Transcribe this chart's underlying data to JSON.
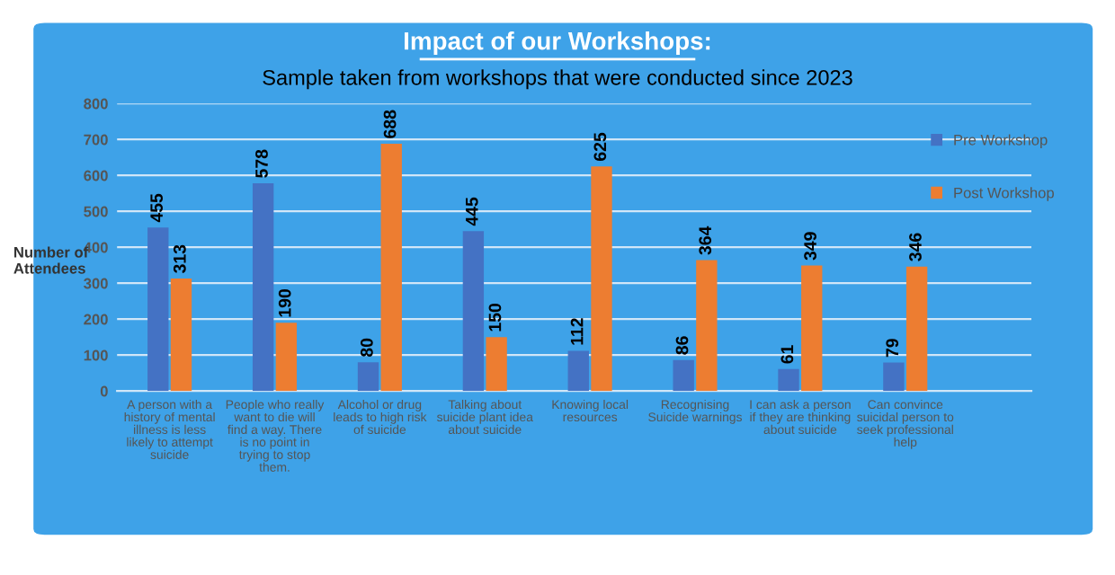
{
  "chart_data": {
    "type": "bar",
    "title": "Impact of our Workshops:",
    "subtitle": "Sample taken from workshops that were conducted since 2023",
    "ylabel": "Number of\nAttendees",
    "categories": [
      "A person with a\nhistory of mental\nillness is less\nlikely to attempt\nsuicide",
      "People who really\nwant to die will\nfind a way. There\nis no point in\ntrying to stop\nthem.",
      "Alcohol or drug\nleads to high risk\nof suicide",
      "Talking about\nsuicide plant idea\nabout suicide",
      "Knowing local\nresources",
      "Recognising\nSuicide warnings",
      "I can ask a person\nif they are thinking\nabout suicide",
      "Can convince\nsuicidal person to\nseek professional\nhelp"
    ],
    "series": [
      {
        "name": "Pre Workshop",
        "color": "#4472c4",
        "values": [
          455,
          578,
          80,
          445,
          112,
          86,
          61,
          79
        ]
      },
      {
        "name": "Post Workshop",
        "color": "#ed7d31",
        "values": [
          313,
          190,
          688,
          150,
          625,
          364,
          349,
          346
        ]
      }
    ],
    "ylim": [
      0,
      800
    ],
    "yticks": [
      0,
      100,
      200,
      300,
      400,
      500,
      600,
      700,
      800
    ],
    "grid": "y",
    "legend": "top right",
    "data_labels": true
  }
}
